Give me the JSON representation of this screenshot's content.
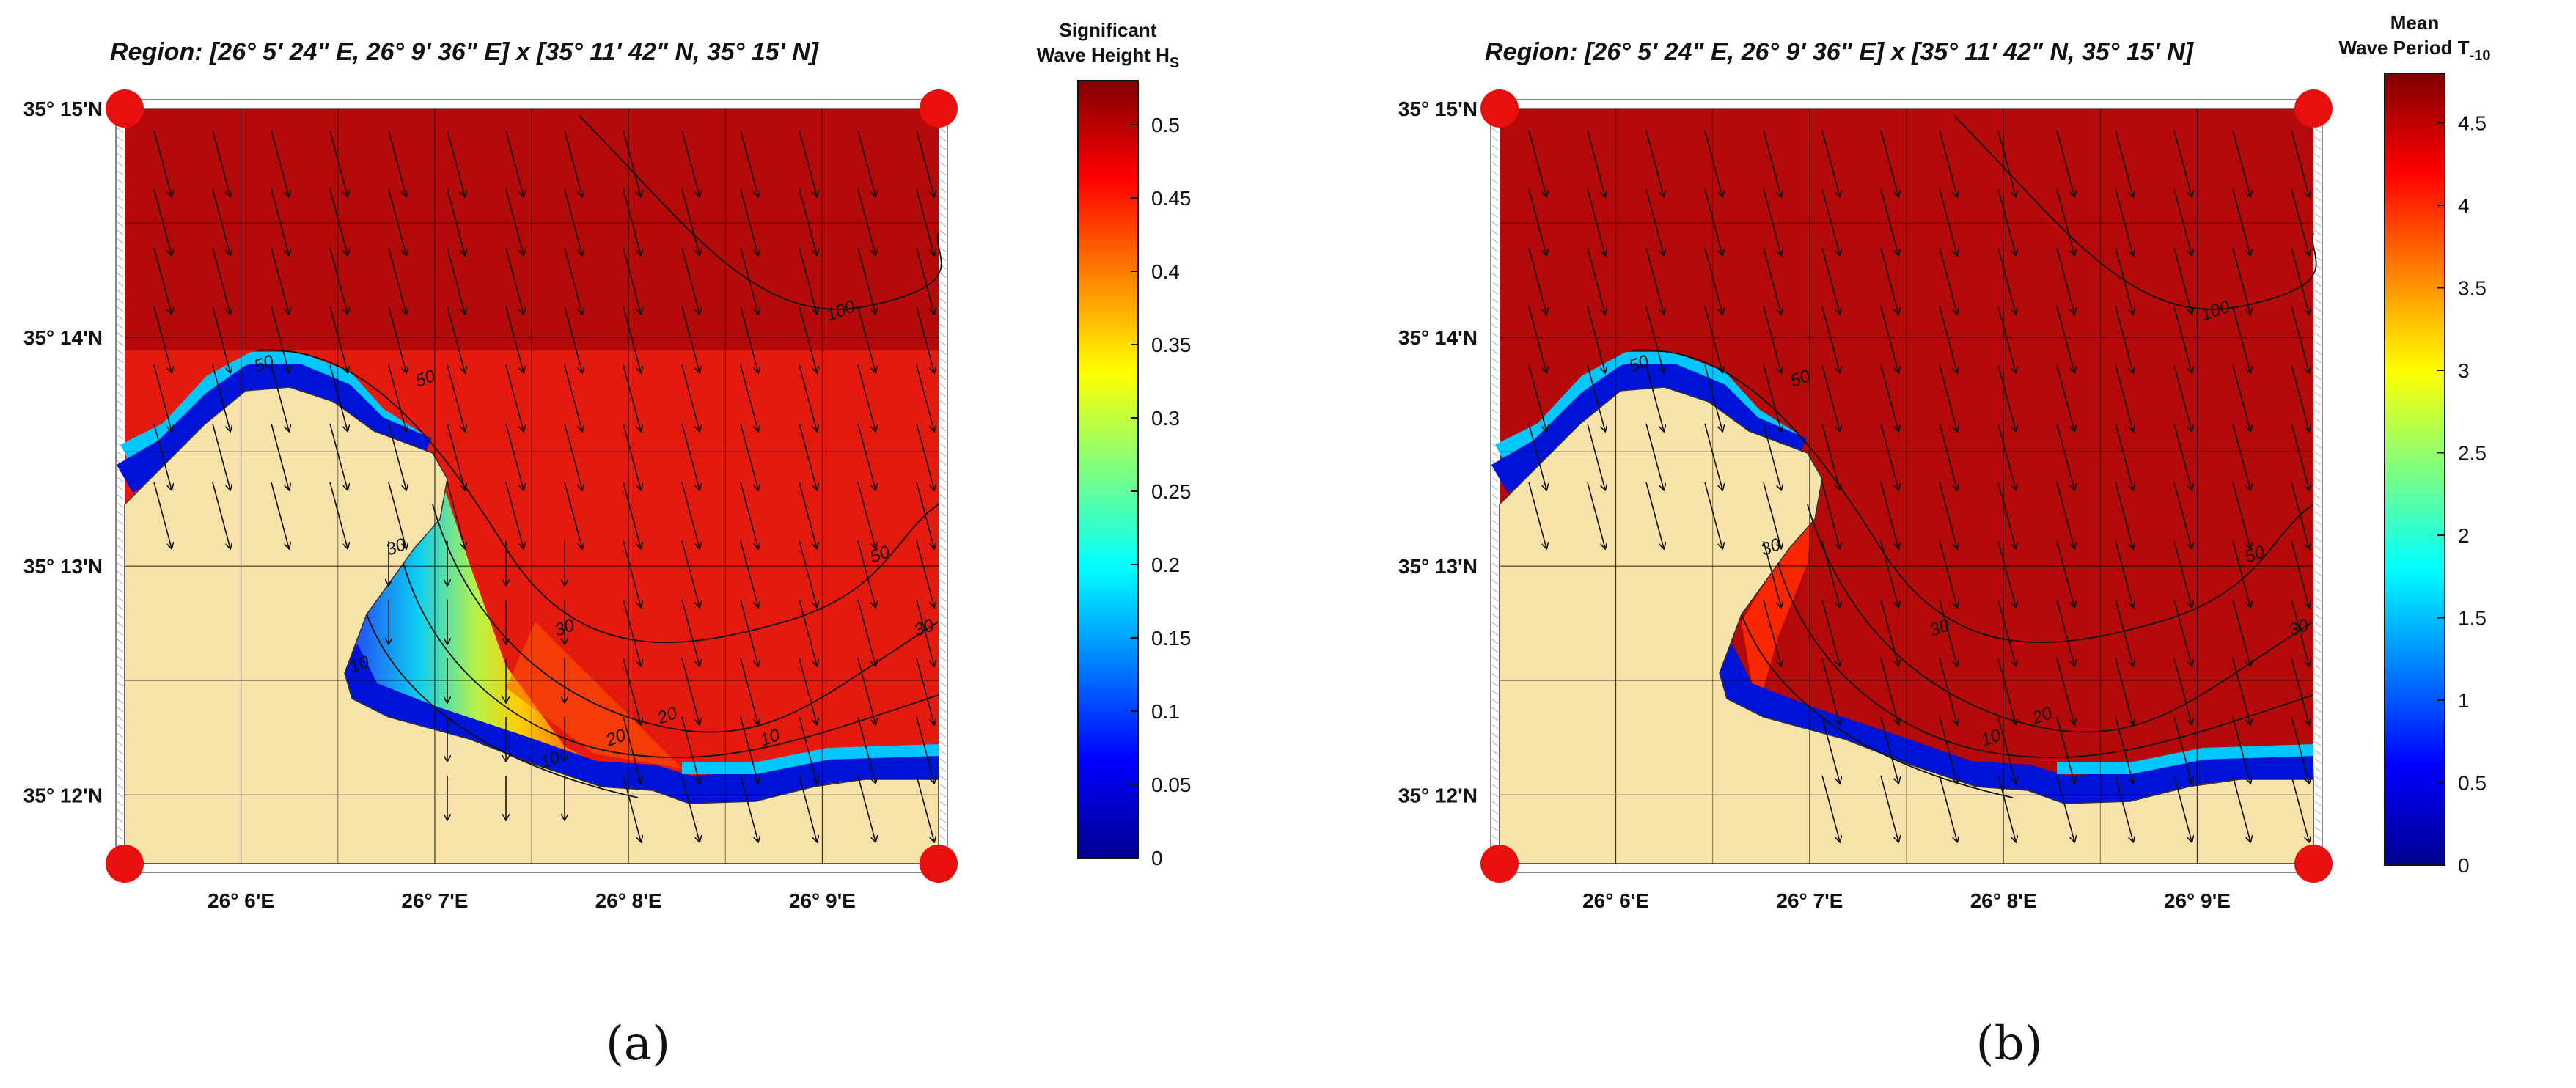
{
  "chart_data": [
    {
      "type": "heatmap",
      "panel_label": "(a)",
      "title": "Region: [26° 5' 24\" E, 26° 9' 36\" E] x [35° 11' 42\" N, 35° 15' N]",
      "colorbar": {
        "title_lines": [
          "Significant",
          "Wave Height H"
        ],
        "title_subscript": "S",
        "ticks": [
          "0",
          "0.05",
          "0.1",
          "0.15",
          "0.2",
          "0.25",
          "0.3",
          "0.35",
          "0.4",
          "0.45",
          "0.5"
        ],
        "tick_values": [
          0,
          0.05,
          0.1,
          0.15,
          0.2,
          0.25,
          0.3,
          0.35,
          0.4,
          0.45,
          0.5
        ],
        "range": [
          0,
          0.53
        ]
      },
      "xticks": [
        "26° 6'E",
        "26° 7'E",
        "26° 8'E",
        "26° 9'E"
      ],
      "x_tick_values": [
        26.1,
        26.11667,
        26.13333,
        26.15
      ],
      "yticks": [
        "35° 12'N",
        "35° 13'N",
        "35° 14'N",
        "35° 15'N"
      ],
      "y_tick_values": [
        35.2,
        35.21667,
        35.23333,
        35.25
      ],
      "xlim": [
        26.09,
        26.16
      ],
      "ylim": [
        35.195,
        35.25
      ],
      "contour_labels": [
        "100",
        "50",
        "50",
        "30",
        "30",
        "20",
        "20",
        "10",
        "10",
        "10",
        "30",
        "50"
      ],
      "field": "Hs",
      "sea_value_m": 0.52,
      "sheltered_min_m": 0.0
    },
    {
      "type": "heatmap",
      "panel_label": "(b)",
      "title": "Region: [26° 5' 24\" E, 26° 9' 36\" E] x [35° 11' 42\" N, 35° 15' N]",
      "colorbar": {
        "title_lines": [
          "Mean",
          "Wave Period T"
        ],
        "title_subscript": "-10",
        "ticks": [
          "0",
          "0.5",
          "1",
          "1.5",
          "2",
          "2.5",
          "3",
          "3.5",
          "4",
          "4.5"
        ],
        "tick_values": [
          0,
          0.5,
          1,
          1.5,
          2,
          2.5,
          3,
          3.5,
          4,
          4.5
        ],
        "range": [
          0,
          4.8
        ]
      },
      "xticks": [
        "26° 6'E",
        "26° 7'E",
        "26° 8'E",
        "26° 9'E"
      ],
      "x_tick_values": [
        26.1,
        26.11667,
        26.13333,
        26.15
      ],
      "yticks": [
        "35° 12'N",
        "35° 13'N",
        "35° 14'N",
        "35° 15'N"
      ],
      "y_tick_values": [
        35.2,
        35.21667,
        35.23333,
        35.25
      ],
      "xlim": [
        26.09,
        26.16
      ],
      "ylim": [
        35.195,
        35.25
      ],
      "contour_labels": [
        "100",
        "50",
        "50",
        "30",
        "30",
        "20",
        "10",
        "30",
        "50"
      ],
      "field": "T-10",
      "sea_value_s": 4.7,
      "sheltered_min_s": 0.0
    }
  ],
  "colors": {
    "land": "#f7e3a9",
    "sea_high": "#b40a0a",
    "marker": "#e8100f",
    "grid": "#000000"
  }
}
